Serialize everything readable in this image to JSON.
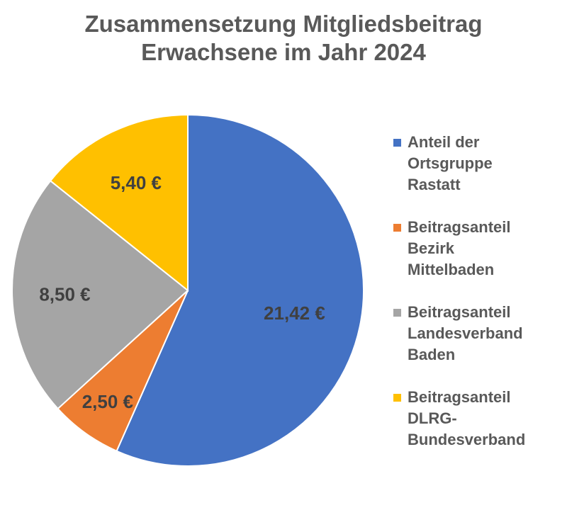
{
  "title_lines": [
    "Zusammensetzung Mitgliedsbeitrag",
    "Erwachsene im Jahr 2024"
  ],
  "chart_data": {
    "type": "pie",
    "title": "Zusammensetzung Mitgliedsbeitrag Erwachsene im Jahr 2024",
    "legend_position": "right",
    "series": [
      {
        "name": "Anteil der Ortsgruppe Rastatt",
        "value": 21.42,
        "label": "21,42 €",
        "color": "#4472C4"
      },
      {
        "name": "Beitragsanteil Bezirk Mittelbaden",
        "value": 2.5,
        "label": "2,50 €",
        "color": "#ED7D31"
      },
      {
        "name": "Beitragsanteil Landesverband Baden",
        "value": 8.5,
        "label": "8,50 €",
        "color": "#A5A5A5"
      },
      {
        "name": "Beitragsanteil DLRG-Bundesverband",
        "value": 5.4,
        "label": "5,40 €",
        "color": "#FFC000"
      }
    ]
  },
  "legend": [
    {
      "label": "Anteil der\nOrtsgruppe\nRastatt",
      "color": "#4472C4"
    },
    {
      "label": "Beitragsanteil\nBezirk\nMittelbaden",
      "color": "#ED7D31"
    },
    {
      "label": "Beitragsanteil\nLandesverband\nBaden",
      "color": "#A5A5A5"
    },
    {
      "label": "Beitragsanteil\nDLRG-\nBundesverband",
      "color": "#FFC000"
    }
  ]
}
